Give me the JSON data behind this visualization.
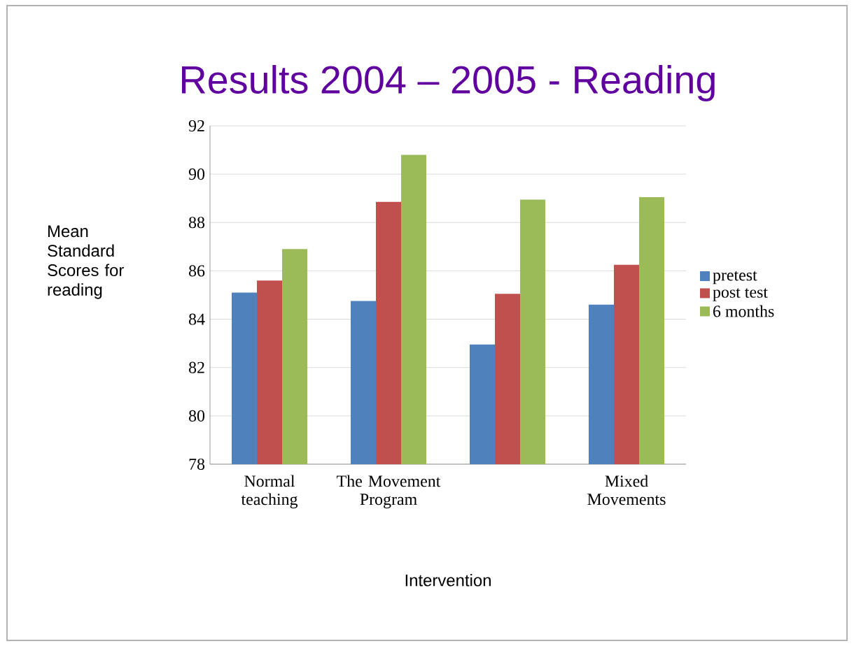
{
  "chart_data": {
    "type": "bar",
    "title": "Results 2004 – 2005 - Reading",
    "xlabel": "Intervention",
    "ylabel": "Mean Standard Scores for reading",
    "categories": [
      "Normal teaching",
      "The Movement Program",
      null,
      "Mixed Movements"
    ],
    "series": [
      {
        "name": "pretest",
        "color": "#4f81bd",
        "values": [
          85.1,
          84.75,
          82.95,
          84.6
        ]
      },
      {
        "name": "post test",
        "color": "#c0504d",
        "values": [
          85.6,
          88.85,
          85.05,
          86.25
        ]
      },
      {
        "name": "6 months",
        "color": "#9bbb59",
        "values": [
          86.9,
          90.8,
          88.95,
          89.05
        ]
      }
    ],
    "ylim": [
      78,
      92
    ],
    "yticks": [
      78,
      80,
      82,
      84,
      86,
      88,
      90,
      92
    ],
    "grid": "y",
    "legend": "right"
  }
}
